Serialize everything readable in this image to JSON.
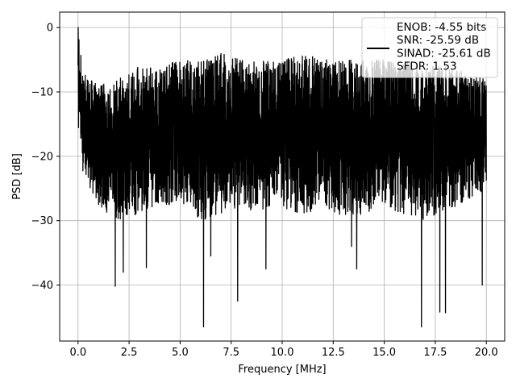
{
  "chart_data": {
    "type": "line",
    "title": "",
    "xlabel": "Frequency [MHz]",
    "ylabel": "PSD [dB]",
    "xlim": [
      -0.9,
      20.9
    ],
    "ylim": [
      -48.7,
      2.4
    ],
    "xticks": [
      0.0,
      2.5,
      5.0,
      7.5,
      10.0,
      12.5,
      15.0,
      17.5,
      20.0
    ],
    "xtick_labels": [
      "0.0",
      "2.5",
      "5.0",
      "7.5",
      "10.0",
      "12.5",
      "15.0",
      "17.5",
      "20.0"
    ],
    "yticks": [
      0,
      -10,
      -20,
      -30,
      -40
    ],
    "ytick_labels": [
      "0",
      "−10",
      "−20",
      "−30",
      "−40"
    ],
    "grid": true,
    "legend_position": "top-right",
    "series": [
      {
        "name": "ENOB: -4.55 bits\nSNR: -25.59 dB\nSINAD: -25.61 dB\nSFDR: 1.53",
        "color": "#000000",
        "upper_envelope": {
          "x": [
            0.0,
            0.05,
            0.2,
            1.0,
            2.0,
            3.0,
            4.0,
            5.0,
            6.0,
            7.0,
            8.0,
            9.0,
            10.0,
            11.0,
            12.0,
            13.0,
            14.0,
            15.0,
            16.0,
            17.0,
            18.0,
            19.0,
            20.0
          ],
          "y": [
            -4,
            0,
            -7,
            -9,
            -8,
            -6,
            -6,
            -5,
            -5,
            -4,
            -5,
            -5,
            -5,
            -4,
            -5,
            -5,
            -5,
            -5,
            -5,
            -6,
            -6,
            -7,
            -8
          ]
        },
        "lower_envelope": {
          "x": [
            0.0,
            0.2,
            1.0,
            2.0,
            3.0,
            4.0,
            5.0,
            6.0,
            7.0,
            8.0,
            9.0,
            10.0,
            11.0,
            12.0,
            13.0,
            14.0,
            15.0,
            16.0,
            17.0,
            18.0,
            19.0,
            20.0
          ],
          "y": [
            -16,
            -22,
            -28,
            -30,
            -29,
            -28,
            -27,
            -30,
            -29,
            -28,
            -29,
            -28,
            -29,
            -28,
            -30,
            -29,
            -28,
            -29,
            -30,
            -29,
            -27,
            -25
          ]
        },
        "dips": [
          {
            "x": 1.82,
            "y": -40.2
          },
          {
            "x": 2.22,
            "y": -38.0
          },
          {
            "x": 3.35,
            "y": -37.3
          },
          {
            "x": 6.15,
            "y": -46.5
          },
          {
            "x": 6.5,
            "y": -35.5
          },
          {
            "x": 7.82,
            "y": -42.5
          },
          {
            "x": 9.2,
            "y": -37.5
          },
          {
            "x": 13.4,
            "y": -34.0
          },
          {
            "x": 13.65,
            "y": -37.5
          },
          {
            "x": 16.82,
            "y": -46.5
          },
          {
            "x": 17.72,
            "y": -44.2
          },
          {
            "x": 18.0,
            "y": -44.3
          },
          {
            "x": 19.8,
            "y": -40.0
          }
        ]
      }
    ]
  }
}
